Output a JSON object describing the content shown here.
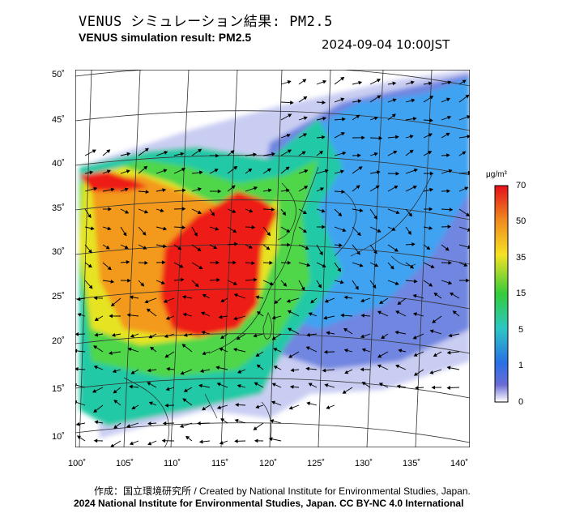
{
  "header": {
    "title_jp": "VENUS シミュレーション結果: PM2.5",
    "title_en": "VENUS simulation result: PM2.5",
    "timestamp": "2024-09-04 10:00JST"
  },
  "map": {
    "lon_ticks": [
      "100˚",
      "105˚",
      "110˚",
      "115˚",
      "120˚",
      "125˚",
      "130˚",
      "135˚",
      "140˚"
    ],
    "lat_ticks": [
      "50˚",
      "45˚",
      "40˚",
      "35˚",
      "30˚",
      "25˚",
      "20˚",
      "15˚",
      "10˚"
    ],
    "lon_range": [
      100,
      141.5
    ],
    "lat_range": [
      9,
      50.5
    ],
    "field_colors": {
      "very_low": "#c8cdf2",
      "low": "#6f86e0",
      "mid_low": "#3fa3f2",
      "mid": "#22c9a6",
      "mid_high": "#4fd64a",
      "high": "#e6e422",
      "very_high": "#f39a1c",
      "extreme": "#ee1c18"
    }
  },
  "colorbar": {
    "unit": "μg/m³",
    "ticks": [
      "70",
      "50",
      "35",
      "15",
      "5",
      "1",
      "0"
    ],
    "colors": [
      "#e4101a",
      "#f08a1e",
      "#f5e223",
      "#33cc3a",
      "#2bc7c4",
      "#2a6fe6",
      "#5a5cd0",
      "#ffffff"
    ]
  },
  "footer": {
    "credit": "作成：国立環境研究所 / Created by National Institute for Environmental Studies, Japan.",
    "license": "2024 National Institute for Environmental Studies, Japan. CC BY-NC 4.0 International"
  }
}
